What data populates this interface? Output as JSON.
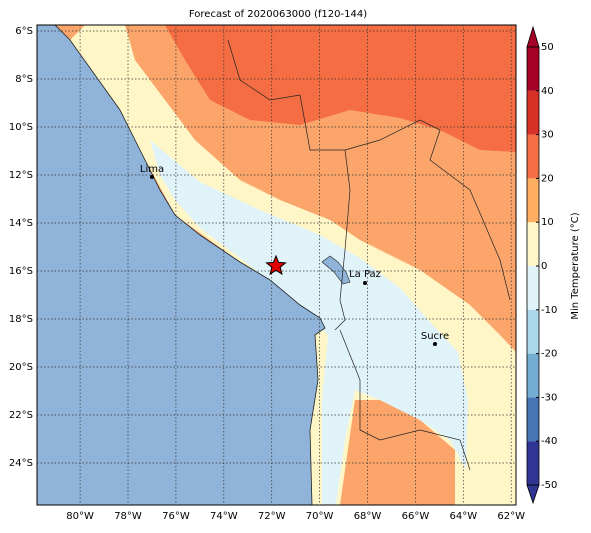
{
  "title": "Forecast of 2020063000 (f120-144)",
  "map": {
    "lonlim": [
      -81.8,
      -61.8
    ],
    "latlim": [
      -5.75,
      -25.75
    ],
    "lonticks": [
      {
        "value": -80,
        "label": "80°W"
      },
      {
        "value": -78,
        "label": "78°W"
      },
      {
        "value": -76,
        "label": "76°W"
      },
      {
        "value": -74,
        "label": "74°W"
      },
      {
        "value": -72,
        "label": "72°W"
      },
      {
        "value": -70,
        "label": "70°W"
      },
      {
        "value": -68,
        "label": "68°W"
      },
      {
        "value": -66,
        "label": "66°W"
      },
      {
        "value": -64,
        "label": "64°W"
      },
      {
        "value": -62,
        "label": "62°W"
      }
    ],
    "latticks": [
      {
        "value": -6,
        "label": "6°S"
      },
      {
        "value": -8,
        "label": "8°S"
      },
      {
        "value": -10,
        "label": "10°S"
      },
      {
        "value": -12,
        "label": "12°S"
      },
      {
        "value": -14,
        "label": "14°S"
      },
      {
        "value": -16,
        "label": "16°S"
      },
      {
        "value": -18,
        "label": "18°S"
      },
      {
        "value": -20,
        "label": "20°S"
      },
      {
        "value": -22,
        "label": "22°S"
      },
      {
        "value": -24,
        "label": "24°S"
      }
    ],
    "cities": [
      "Lima",
      "La Paz",
      "Sucre"
    ]
  },
  "colorbar": {
    "label": "Min Temperature (°C)",
    "ticks": [
      -50,
      -40,
      -30,
      -20,
      -10,
      0,
      10,
      20,
      30,
      40,
      50
    ],
    "colors": [
      "#313695",
      "#4575b4",
      "#74add1",
      "#abd9e9",
      "#e0f3f8",
      "#fef6c7",
      "#fdae61",
      "#f46d43",
      "#d73027",
      "#a50026"
    ]
  }
}
